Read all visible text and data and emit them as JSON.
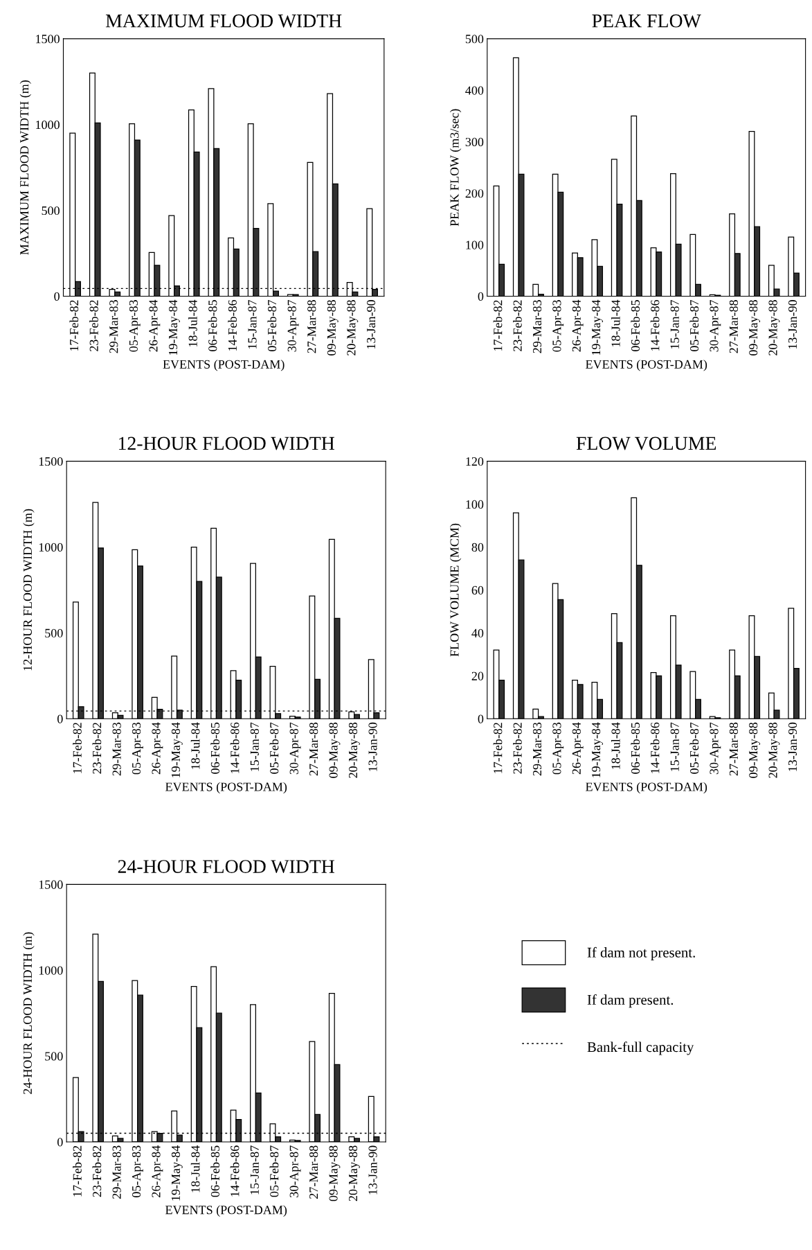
{
  "chart_data": [
    {
      "type": "bar",
      "title": "MAXIMUM FLOOD WIDTH",
      "xlabel": "EVENTS (POST-DAM)",
      "ylabel": "MAXIMUM FLOOD WIDTH (m)",
      "categories": [
        "17-Feb-82",
        "23-Feb-82",
        "29-Mar-83",
        "05-Apr-83",
        "26-Apr-84",
        "19-May-84",
        "18-Jul-84",
        "06-Feb-85",
        "14-Feb-86",
        "15-Jan-87",
        "05-Feb-87",
        "30-Apr-87",
        "27-Mar-88",
        "09-May-88",
        "20-May-88",
        "13-Jan-90"
      ],
      "ylim": [
        0,
        1500
      ],
      "yticks": [
        0,
        500,
        1000,
        1500
      ],
      "grid": false,
      "legend": "bottom right",
      "series": [
        {
          "name": "If dam not present.",
          "color": "#ffffff",
          "values": [
            950,
            1300,
            40,
            1005,
            255,
            470,
            1085,
            1210,
            340,
            1005,
            540,
            10,
            780,
            1180,
            80,
            510
          ]
        },
        {
          "name": "If dam present.",
          "color": "#333333",
          "values": [
            85,
            1010,
            25,
            910,
            180,
            60,
            840,
            860,
            275,
            395,
            30,
            10,
            260,
            655,
            25,
            40
          ]
        }
      ],
      "ref_lines": [
        {
          "axis": "y",
          "value": 45,
          "label": "Bank-full capacity",
          "color": "#000000",
          "line_style": "dotted"
        }
      ]
    },
    {
      "type": "bar",
      "title": "PEAK FLOW",
      "xlabel": "EVENTS (POST-DAM)",
      "ylabel": "PEAK FLOW (m3/sec)",
      "categories": [
        "17-Feb-82",
        "23-Feb-82",
        "29-Mar-83",
        "05-Apr-83",
        "26-Apr-84",
        "19-May-84",
        "18-Jul-84",
        "06-Feb-85",
        "14-Feb-86",
        "15-Jan-87",
        "05-Feb-87",
        "30-Apr-87",
        "27-Mar-88",
        "09-May-88",
        "20-May-88",
        "13-Jan-90"
      ],
      "ylim": [
        0,
        500
      ],
      "yticks": [
        0,
        100,
        200,
        300,
        400,
        500
      ],
      "grid": false,
      "series": [
        {
          "name": "If dam not present.",
          "color": "#ffffff",
          "values": [
            214,
            463,
            23,
            237,
            84,
            110,
            266,
            350,
            94,
            238,
            120,
            3,
            160,
            320,
            60,
            115
          ]
        },
        {
          "name": "If dam present.",
          "color": "#333333",
          "values": [
            62,
            237,
            4,
            202,
            75,
            58,
            179,
            186,
            86,
            101,
            23,
            2,
            83,
            135,
            14,
            45
          ]
        }
      ]
    },
    {
      "type": "bar",
      "title": "12-HOUR FLOOD WIDTH",
      "xlabel": "EVENTS (POST-DAM)",
      "ylabel": "12-HOUR FLOOD WIDTH (m)",
      "categories": [
        "17-Feb-82",
        "23-Feb-82",
        "29-Mar-83",
        "05-Apr-83",
        "26-Apr-84",
        "19-May-84",
        "18-Jul-84",
        "06-Feb-85",
        "14-Feb-86",
        "15-Jan-87",
        "05-Feb-87",
        "30-Apr-87",
        "27-Mar-88",
        "09-May-88",
        "20-May-88",
        "13-Jan-90"
      ],
      "ylim": [
        0,
        1500
      ],
      "yticks": [
        0,
        500,
        1000,
        1500
      ],
      "grid": false,
      "series": [
        {
          "name": "If dam not present.",
          "color": "#ffffff",
          "values": [
            680,
            1260,
            35,
            985,
            125,
            365,
            1000,
            1110,
            280,
            905,
            305,
            15,
            715,
            1045,
            40,
            345
          ]
        },
        {
          "name": "If dam present.",
          "color": "#333333",
          "values": [
            70,
            995,
            20,
            890,
            55,
            50,
            800,
            825,
            225,
            360,
            30,
            10,
            230,
            585,
            25,
            35
          ]
        }
      ],
      "ref_lines": [
        {
          "axis": "y",
          "value": 45,
          "color": "#000000",
          "line_style": "dotted"
        }
      ]
    },
    {
      "type": "bar",
      "title": "FLOW VOLUME",
      "xlabel": "EVENTS (POST-DAM)",
      "ylabel": "FLOW VOLUME (MCM)",
      "categories": [
        "17-Feb-82",
        "23-Feb-82",
        "29-Mar-83",
        "05-Apr-83",
        "26-Apr-84",
        "19-May-84",
        "18-Jul-84",
        "06-Feb-85",
        "14-Feb-86",
        "15-Jan-87",
        "05-Feb-87",
        "30-Apr-87",
        "27-Mar-88",
        "09-May-88",
        "20-May-88",
        "13-Jan-90"
      ],
      "ylim": [
        0,
        120
      ],
      "yticks": [
        0,
        20,
        40,
        60,
        80,
        100,
        120
      ],
      "grid": false,
      "series": [
        {
          "name": "If dam not present.",
          "color": "#ffffff",
          "values": [
            32,
            96,
            4.5,
            63,
            18,
            17,
            49,
            103,
            21.5,
            48,
            22,
            1,
            32,
            48,
            12,
            51.5
          ]
        },
        {
          "name": "If dam present.",
          "color": "#333333",
          "values": [
            18,
            74,
            1,
            55.5,
            16,
            9,
            35.5,
            71.5,
            20,
            25,
            9,
            0.5,
            20,
            29,
            4,
            23.5
          ]
        }
      ]
    },
    {
      "type": "bar",
      "title": "24-HOUR FLOOD WIDTH",
      "xlabel": "EVENTS (POST-DAM)",
      "ylabel": "24-HOUR FLOOD WIDTH (m)",
      "categories": [
        "17-Feb-82",
        "23-Feb-82",
        "29-Mar-83",
        "05-Apr-83",
        "26-Apr-84",
        "19-May-84",
        "18-Jul-84",
        "06-Feb-85",
        "14-Feb-86",
        "15-Jan-87",
        "05-Feb-87",
        "30-Apr-87",
        "27-Mar-88",
        "09-May-88",
        "20-May-88",
        "13-Jan-90"
      ],
      "ylim": [
        0,
        1500
      ],
      "yticks": [
        0,
        500,
        1000,
        1500
      ],
      "grid": false,
      "series": [
        {
          "name": "If dam not present.",
          "color": "#ffffff",
          "values": [
            375,
            1210,
            35,
            940,
            60,
            180,
            905,
            1020,
            185,
            800,
            105,
            10,
            585,
            865,
            30,
            265
          ]
        },
        {
          "name": "If dam present.",
          "color": "#333333",
          "values": [
            60,
            935,
            20,
            855,
            50,
            40,
            665,
            750,
            130,
            285,
            30,
            8,
            160,
            450,
            20,
            30
          ]
        }
      ],
      "ref_lines": [
        {
          "axis": "y",
          "value": 50,
          "color": "#000000",
          "line_style": "dotted"
        }
      ]
    }
  ]
}
